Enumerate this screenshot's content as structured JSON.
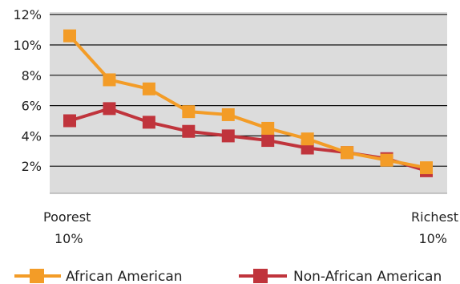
{
  "chart_data": {
    "type": "line",
    "y_ticks": [
      "2%",
      "4%",
      "6%",
      "8%",
      "10%",
      "12%"
    ],
    "y_tick_values": [
      2,
      4,
      6,
      8,
      10,
      12
    ],
    "ylim": [
      0,
      12
    ],
    "grid": true,
    "x_start_label": [
      "Poorest",
      "10%"
    ],
    "x_end_label": [
      "Richest",
      "10%"
    ],
    "legend_placement": "bottom",
    "series": [
      {
        "name": "African American",
        "color": "#F39C27",
        "values": [
          10.6,
          7.7,
          7.1,
          5.6,
          5.4,
          4.5,
          3.8,
          2.9,
          2.4,
          1.9
        ]
      },
      {
        "name": "Non-African American",
        "color": "#C0343C",
        "values": [
          5.0,
          5.8,
          4.9,
          4.3,
          4.0,
          3.7,
          3.2,
          2.9,
          2.5,
          1.7
        ]
      }
    ]
  }
}
